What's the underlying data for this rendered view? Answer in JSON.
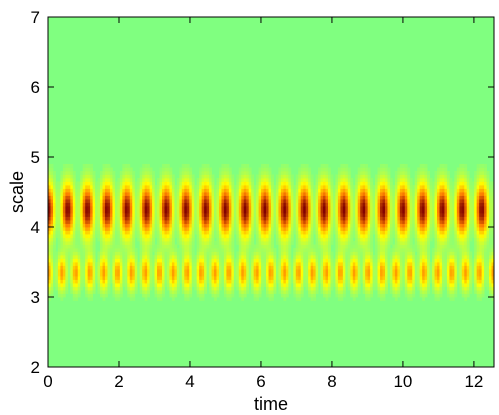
{
  "chart_data": {
    "type": "heatmap",
    "title": "",
    "xlabel": "time",
    "ylabel": "scale",
    "xlim": [
      0,
      12.566
    ],
    "ylim": [
      2,
      7
    ],
    "xticks": [
      0,
      2,
      4,
      6,
      8,
      10,
      12
    ],
    "yticks": [
      2,
      3,
      4,
      5,
      6,
      7
    ],
    "xtick_labels": [
      "0",
      "2",
      "4",
      "6",
      "8",
      "10",
      "12"
    ],
    "ytick_labels": [
      "2",
      "3",
      "4",
      "5",
      "6",
      "7"
    ],
    "grid": false,
    "colormap": [
      "#80ff80",
      "#ffff00",
      "#ff8000",
      "#800000"
    ],
    "background_value": 0,
    "bands": [
      {
        "center_scale": 4.25,
        "half_width_scale": 0.55,
        "peak_value": 1.0,
        "oscillations_per_unit_time": 1.8
      },
      {
        "center_scale": 3.35,
        "half_width_scale": 0.35,
        "peak_value": 0.6,
        "oscillations_per_unit_time": 2.55
      }
    ]
  }
}
